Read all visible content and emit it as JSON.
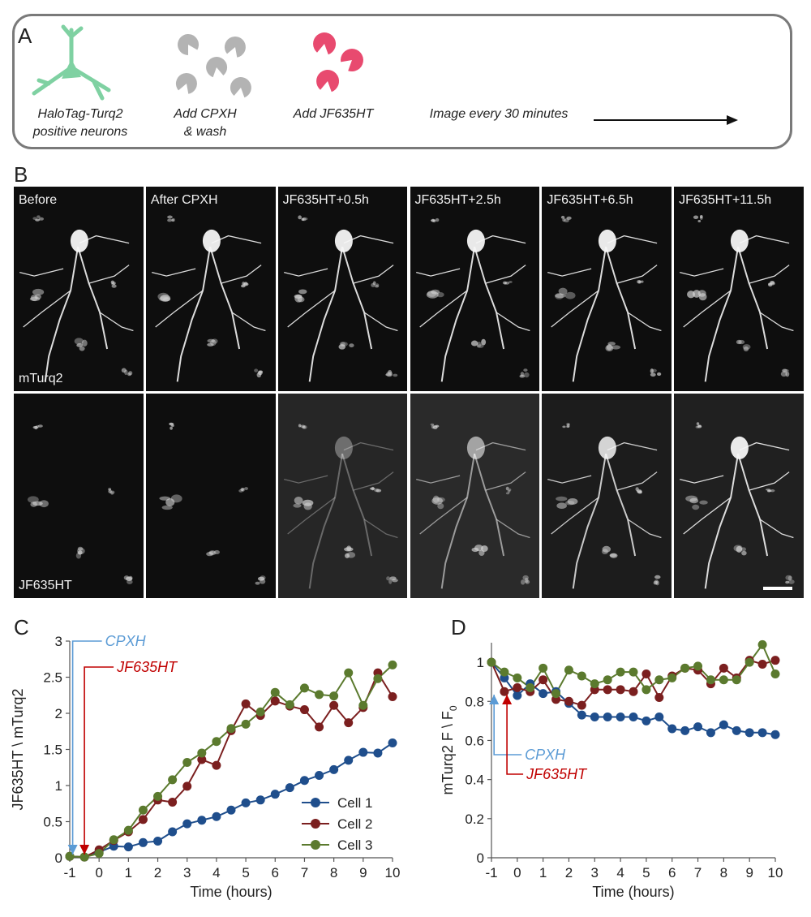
{
  "panel_letters": {
    "a": "A",
    "b": "B",
    "c": "C",
    "d": "D"
  },
  "panel_a": {
    "steps": [
      {
        "line1": "HaloTag-Turq2",
        "line2": "positive neurons"
      },
      {
        "line1": "Add CPXH",
        "line2": "& wash"
      },
      {
        "line1": "Add JF635HT",
        "line2": ""
      },
      {
        "line1": "Image every 30 minutes",
        "line2": ""
      }
    ],
    "colors": {
      "neuron": "#7fd1a2",
      "cpxh": "#b3b3b3",
      "jf635ht": "#e84a6f"
    }
  },
  "panel_b": {
    "column_labels": [
      "Before",
      "After CPXH",
      "JF635HT+0.5h",
      "JF635HT+2.5h",
      "JF635HT+6.5h",
      "JF635HT+11.5h"
    ],
    "row_labels": [
      "mTurq2",
      "JF635HT"
    ]
  },
  "chart_data": [
    {
      "type": "line",
      "ylabel": "JF635HT \\ mTurq2",
      "xlabel": "Time (hours)",
      "xlim": [
        -1,
        10
      ],
      "ylim": [
        0,
        3
      ],
      "xticks": [
        -1,
        0,
        1,
        2,
        3,
        4,
        5,
        6,
        7,
        8,
        9,
        10
      ],
      "yticks": [
        "0",
        "0.5",
        "1",
        "1.5",
        "2",
        "2.5",
        "3"
      ],
      "grid": false,
      "legend": "bottom-right",
      "annotations": [
        {
          "text": "CPXH",
          "x": -0.9,
          "color": "#5b9bd5"
        },
        {
          "text": "JF635HT",
          "x": -0.5,
          "color": "#c00000"
        }
      ],
      "x": [
        -1,
        -0.5,
        0,
        0.5,
        1,
        1.5,
        2,
        2.5,
        3,
        3.5,
        4,
        4.5,
        5,
        5.5,
        6,
        6.5,
        7,
        7.5,
        8,
        8.5,
        9,
        9.5,
        10
      ],
      "series": [
        {
          "name": "Cell 1",
          "color": "#1f4e8c",
          "values": [
            0.02,
            0.01,
            0.08,
            0.16,
            0.15,
            0.21,
            0.23,
            0.36,
            0.47,
            0.52,
            0.57,
            0.66,
            0.76,
            0.8,
            0.88,
            0.97,
            1.07,
            1.14,
            1.22,
            1.35,
            1.46,
            1.45,
            1.59
          ]
        },
        {
          "name": "Cell 2",
          "color": "#7b1f1f",
          "values": [
            0.02,
            0.01,
            0.11,
            0.24,
            0.36,
            0.53,
            0.8,
            0.77,
            0.99,
            1.36,
            1.28,
            1.76,
            2.13,
            1.97,
            2.17,
            2.1,
            2.05,
            1.81,
            2.11,
            1.87,
            2.08,
            2.56,
            2.23
          ]
        },
        {
          "name": "Cell 3",
          "color": "#5b7a2e",
          "values": [
            0.02,
            0.01,
            0.06,
            0.25,
            0.38,
            0.66,
            0.85,
            1.08,
            1.32,
            1.45,
            1.61,
            1.79,
            1.85,
            2.02,
            2.29,
            2.12,
            2.35,
            2.26,
            2.24,
            2.56,
            2.11,
            2.48,
            2.67
          ]
        }
      ]
    },
    {
      "type": "line",
      "ylabel": "mTurq2 F \\ F",
      "ylabel_sub": "0",
      "xlabel": "Time (hours)",
      "xlim": [
        -1,
        10
      ],
      "ylim": [
        0,
        1.1
      ],
      "xticks": [
        -1,
        0,
        1,
        2,
        3,
        4,
        5,
        6,
        7,
        8,
        9,
        10
      ],
      "yticks": [
        "0",
        "0.2",
        "0.4",
        "0.6",
        "0.8",
        "1"
      ],
      "grid": false,
      "annotations": [
        {
          "text": "CPXH",
          "x": -0.9,
          "color": "#5b9bd5"
        },
        {
          "text": "JF635HT",
          "x": -0.4,
          "color": "#c00000"
        }
      ],
      "x": [
        -1,
        -0.5,
        0,
        0.5,
        1,
        1.5,
        2,
        2.5,
        3,
        3.5,
        4,
        4.5,
        5,
        5.5,
        6,
        6.5,
        7,
        7.5,
        8,
        8.5,
        9,
        9.5,
        10
      ],
      "series": [
        {
          "name": "Cell 1",
          "color": "#1f4e8c",
          "values": [
            1.0,
            0.92,
            0.83,
            0.89,
            0.84,
            0.85,
            0.79,
            0.73,
            0.72,
            0.72,
            0.72,
            0.72,
            0.7,
            0.72,
            0.66,
            0.65,
            0.67,
            0.64,
            0.68,
            0.65,
            0.64,
            0.64,
            0.63
          ]
        },
        {
          "name": "Cell 2",
          "color": "#7b1f1f",
          "values": [
            1.0,
            0.85,
            0.87,
            0.85,
            0.91,
            0.81,
            0.8,
            0.78,
            0.86,
            0.86,
            0.86,
            0.85,
            0.94,
            0.82,
            0.93,
            0.97,
            0.96,
            0.89,
            0.97,
            0.92,
            1.01,
            0.99,
            1.01
          ]
        },
        {
          "name": "Cell 3",
          "color": "#5b7a2e",
          "values": [
            1.0,
            0.95,
            0.92,
            0.87,
            0.97,
            0.84,
            0.96,
            0.93,
            0.89,
            0.91,
            0.95,
            0.95,
            0.86,
            0.91,
            0.92,
            0.97,
            0.98,
            0.91,
            0.91,
            0.91,
            1.0,
            1.09,
            0.94
          ]
        }
      ]
    }
  ]
}
